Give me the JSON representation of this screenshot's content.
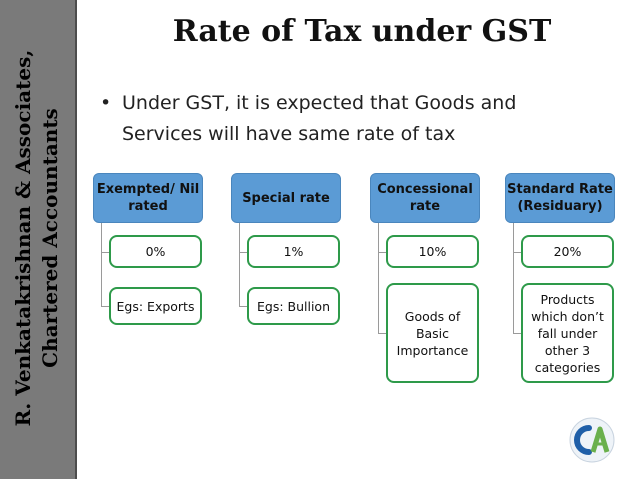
{
  "sidebar": {
    "line1": "R. Venkatakrishnan & Associates,",
    "line2": "Chartered Accountants"
  },
  "title": "Rate of Tax under GST",
  "bullet": {
    "marker": "•",
    "line1": "Under GST, it is expected that Goods and",
    "line2": "Services will have same rate of tax"
  },
  "columns": [
    {
      "head_lines": [
        "Exempted/ Nil",
        "rated"
      ],
      "children": [
        {
          "lines": [
            "0%"
          ]
        },
        {
          "lines": [
            "Egs: Exports"
          ]
        }
      ]
    },
    {
      "head_lines": [
        "Special rate"
      ],
      "children": [
        {
          "lines": [
            "1%"
          ]
        },
        {
          "lines": [
            "Egs: Bullion"
          ]
        }
      ]
    },
    {
      "head_lines": [
        "Concessional",
        "rate"
      ],
      "children": [
        {
          "lines": [
            "10%"
          ]
        },
        {
          "lines": [
            "Goods of",
            "Basic",
            "Importance"
          ]
        }
      ]
    },
    {
      "head_lines": [
        "Standard Rate",
        "(Residuary)"
      ],
      "children": [
        {
          "lines": [
            "20%"
          ]
        },
        {
          "lines": [
            "Products",
            "which don’t",
            "fall under",
            "other 3",
            "categories"
          ]
        }
      ]
    }
  ],
  "logo": {
    "name": "ca-logo-icon",
    "colors": {
      "c": "#1f5fa8",
      "a": "#6ab04c"
    }
  },
  "colors": {
    "header_fill": "#5b9bd5",
    "child_border": "#2e9a4a",
    "sidebar": "#7a7a7a"
  }
}
